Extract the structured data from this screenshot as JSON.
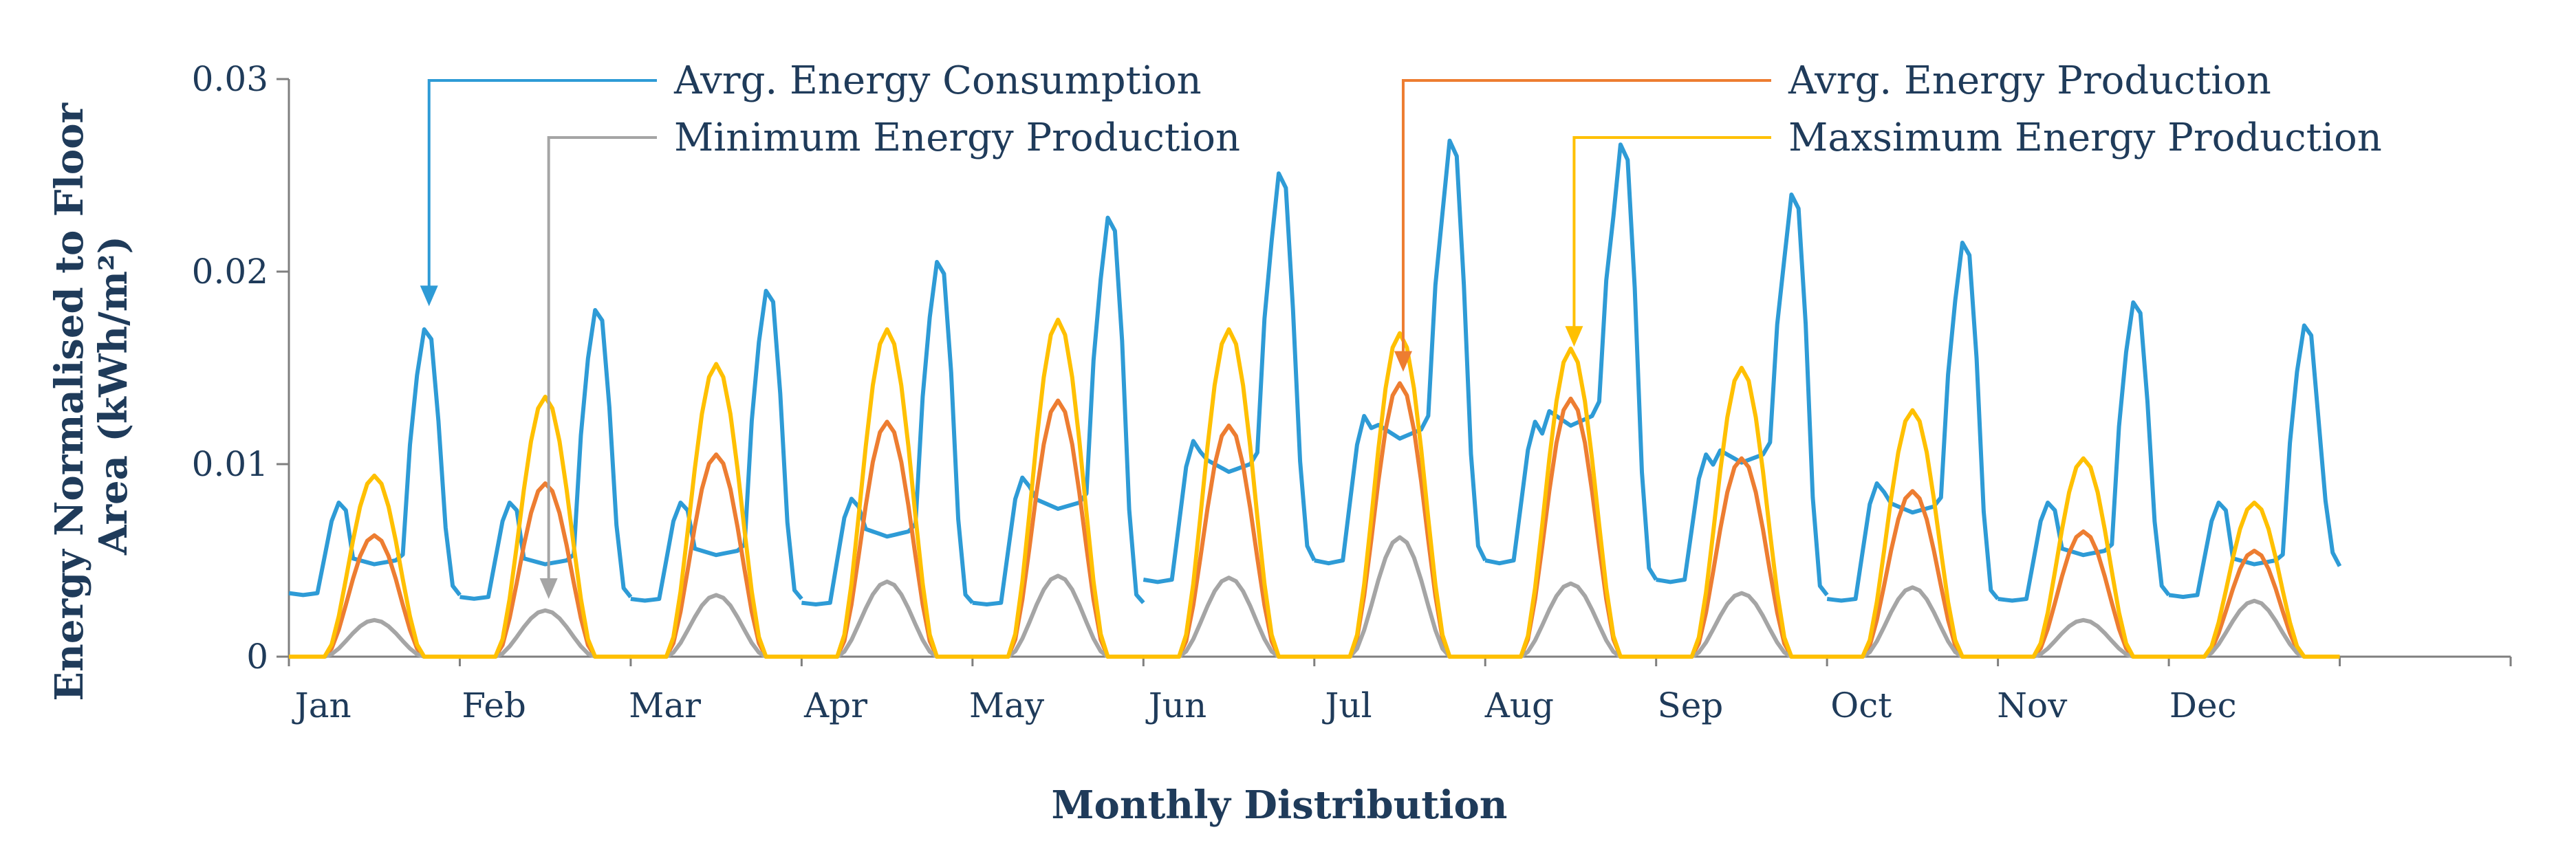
{
  "chart_data": {
    "type": "line",
    "title": "",
    "xlabel": "Monthly Distribution",
    "ylabel": "Energy Normalised to Floor Area (kWh/m²)",
    "ylabel_line1": "Energy Normalised to Floor",
    "ylabel_line2": "Area (kWh/m²)",
    "ylim": [
      0,
      0.03
    ],
    "yticks": [
      {
        "value": 0,
        "label": "0"
      },
      {
        "value": 0.01,
        "label": "0.01"
      },
      {
        "value": 0.02,
        "label": "0.02"
      },
      {
        "value": 0.03,
        "label": "0.03"
      }
    ],
    "months": [
      "Jan",
      "Feb",
      "Mar",
      "Apr",
      "May",
      "Jun",
      "Jul",
      "Aug",
      "Sep",
      "Oct",
      "Nov",
      "Dec"
    ],
    "hours_per_day": 24,
    "x_domain_days": 13,
    "series": [
      {
        "name": "Avrg. Energy Consumption",
        "color": "#2e9bd6",
        "kind": "consumption",
        "days": [
          {
            "base": 0.0033,
            "morning": 0.008,
            "plateau": 0.005,
            "evening": 0.017,
            "night": 0.0032
          },
          {
            "base": 0.0031,
            "morning": 0.008,
            "plateau": 0.005,
            "evening": 0.018,
            "night": 0.0031
          },
          {
            "base": 0.003,
            "morning": 0.008,
            "plateau": 0.0055,
            "evening": 0.019,
            "night": 0.003
          },
          {
            "base": 0.0028,
            "morning": 0.0082,
            "plateau": 0.0065,
            "evening": 0.0205,
            "night": 0.0028
          },
          {
            "base": 0.0028,
            "morning": 0.0093,
            "plateau": 0.008,
            "evening": 0.0228,
            "night": 0.0028
          },
          {
            "base": 0.004,
            "morning": 0.0112,
            "plateau": 0.01,
            "evening": 0.0251,
            "night": 0.005
          },
          {
            "base": 0.005,
            "morning": 0.0125,
            "plateau": 0.0118,
            "evening": 0.0268,
            "night": 0.005
          },
          {
            "base": 0.005,
            "morning": 0.0122,
            "plateau": 0.0125,
            "evening": 0.0266,
            "night": 0.004
          },
          {
            "base": 0.004,
            "morning": 0.0105,
            "plateau": 0.0105,
            "evening": 0.024,
            "night": 0.0032
          },
          {
            "base": 0.003,
            "morning": 0.009,
            "plateau": 0.0078,
            "evening": 0.0215,
            "night": 0.003
          },
          {
            "base": 0.003,
            "morning": 0.008,
            "plateau": 0.0055,
            "evening": 0.0184,
            "night": 0.0032
          },
          {
            "base": 0.0032,
            "morning": 0.008,
            "plateau": 0.005,
            "evening": 0.0172,
            "night": 0.0047
          }
        ]
      },
      {
        "name": "Avrg. Energy Production",
        "color": "#ed7d31",
        "kind": "production",
        "peaks": [
          0.0063,
          0.009,
          0.0105,
          0.0122,
          0.0133,
          0.012,
          0.0142,
          0.0134,
          0.0103,
          0.0086,
          0.0065,
          0.0055
        ]
      },
      {
        "name": "Minimum Energy Production",
        "color": "#a5a5a5",
        "kind": "production",
        "peaks": [
          0.0019,
          0.0024,
          0.0032,
          0.0039,
          0.0042,
          0.0041,
          0.0062,
          0.0038,
          0.0033,
          0.0036,
          0.0019,
          0.0029
        ]
      },
      {
        "name": "Maxsimum Energy Production",
        "color": "#ffc000",
        "kind": "production",
        "peaks": [
          0.0094,
          0.0135,
          0.0152,
          0.017,
          0.0175,
          0.017,
          0.0168,
          0.016,
          0.015,
          0.0128,
          0.0103,
          0.008
        ]
      }
    ],
    "annotations": [
      {
        "series": "Avrg. Energy Consumption",
        "label": "Avrg. Energy Consumption",
        "target_day": 0.82,
        "target_value": 0.0182
      },
      {
        "series": "Minimum Energy Production",
        "label": "Minimum Energy Production",
        "target_day": 1.52,
        "target_value": 0.003
      },
      {
        "series": "Avrg. Energy Production",
        "label": "Avrg. Energy Production",
        "target_day": 6.52,
        "target_value": 0.0148
      },
      {
        "series": "Maxsimum Energy Production",
        "label": "Maxsimum Energy Production",
        "target_day": 7.52,
        "target_value": 0.0161
      }
    ],
    "grid": false,
    "legend": "top (arrow callouts)"
  }
}
